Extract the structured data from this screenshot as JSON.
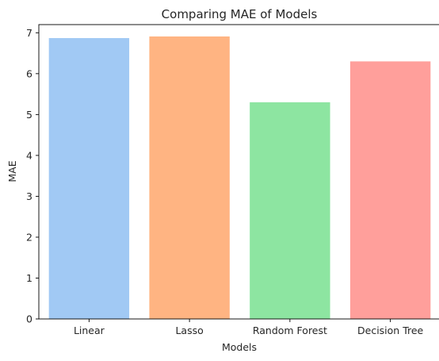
{
  "chart_data": {
    "type": "bar",
    "title": "Comparing MAE of Models",
    "xlabel": "Models",
    "ylabel": "MAE",
    "categories": [
      "Linear",
      "Lasso",
      "Random Forest",
      "Decision Tree"
    ],
    "values": [
      6.87,
      6.91,
      5.3,
      6.3
    ],
    "colors": [
      "#a1c9f4",
      "#ffb482",
      "#8de5a1",
      "#ff9f9b"
    ],
    "ylim": [
      0,
      7.2
    ],
    "yticks": [
      "0",
      "1",
      "2",
      "3",
      "4",
      "5",
      "6",
      "7"
    ],
    "grid": false
  }
}
